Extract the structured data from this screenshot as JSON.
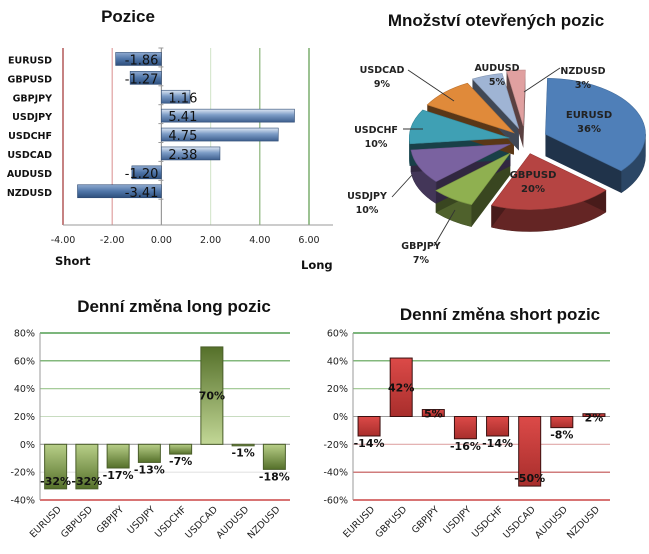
{
  "chart_data": [
    {
      "id": "pozice",
      "type": "bar",
      "orientation": "horizontal",
      "title": "Pozice",
      "categories": [
        "EURUSD",
        "GBPUSD",
        "GBPJPY",
        "USDJPY",
        "USDCHF",
        "USDCAD",
        "AUDUSD",
        "NZDUSD"
      ],
      "values": [
        -1.86,
        -1.27,
        1.16,
        5.41,
        4.75,
        2.38,
        -1.2,
        -3.41
      ],
      "value_labels": [
        "-1.86",
        "-1.27",
        "1.16",
        "5.41",
        "4.75",
        "2.38",
        "-1.20",
        "-3.41"
      ],
      "xlim": [
        -4,
        6
      ],
      "xticks": [
        -4,
        -2,
        0,
        2,
        4,
        6
      ],
      "xtick_labels": [
        "-4.00",
        "-2.00",
        "0.00",
        "2.00",
        "4.00",
        "6.00"
      ],
      "xlabel_left": "Short",
      "xlabel_right": "Long",
      "colors": {
        "bar": "#4f75a8",
        "bar_light": "#c9d8ec",
        "neg_grid": "#b22a2a",
        "pos_grid": "#4e9a4e"
      }
    },
    {
      "id": "mnozstvi",
      "type": "pie",
      "title": "Množství otevřených pozic",
      "slices": [
        {
          "label": "EURUSD",
          "value": 36,
          "text": "36%",
          "color": "#4f7fb8"
        },
        {
          "label": "GBPUSD",
          "value": 20,
          "text": "20%",
          "color": "#b54442"
        },
        {
          "label": "GBPJPY",
          "value": 7,
          "text": "7%",
          "color": "#8fb050"
        },
        {
          "label": "USDJPY",
          "value": 10,
          "text": "10%",
          "color": "#7a62a0"
        },
        {
          "label": "USDCHF",
          "value": 10,
          "text": "10%",
          "color": "#3fa0b4"
        },
        {
          "label": "USDCAD",
          "value": 9,
          "text": "9%",
          "color": "#e08a3a"
        },
        {
          "label": "AUDUSD",
          "value": 5,
          "text": "5%",
          "color": "#9fb4d4"
        },
        {
          "label": "NZDUSD",
          "value": 3,
          "text": "3%",
          "color": "#e0a0a0"
        }
      ]
    },
    {
      "id": "long",
      "type": "bar",
      "title": "Denní změna long pozic",
      "categories": [
        "EURUSD",
        "GBPUSD",
        "GBPJPY",
        "USDJPY",
        "USDCHF",
        "USDCAD",
        "AUDUSD",
        "NZDUSD"
      ],
      "values": [
        -32,
        -32,
        -17,
        -13,
        -7,
        70,
        -1,
        -18
      ],
      "value_labels": [
        "-32%",
        "-32%",
        "-17%",
        "-13%",
        "-7%",
        "70%",
        "-1%",
        "-18%"
      ],
      "ylim": [
        -40,
        80
      ],
      "yticks": [
        -40,
        -20,
        0,
        20,
        40,
        60,
        80
      ],
      "ytick_labels": [
        "-40%",
        "-20%",
        "0%",
        "20%",
        "40%",
        "60%",
        "80%"
      ],
      "colors": {
        "bar_dark": "#5a7a2a",
        "bar_light": "#b8cf88"
      }
    },
    {
      "id": "short",
      "type": "bar",
      "title": "Denní změna short pozic",
      "categories": [
        "EURUSD",
        "GBPUSD",
        "GBPJPY",
        "USDJPY",
        "USDCHF",
        "USDCAD",
        "AUDUSD",
        "NZDUSD"
      ],
      "values": [
        -14,
        42,
        5,
        -16,
        -14,
        -50,
        -8,
        2
      ],
      "value_labels": [
        "-14%",
        "42%",
        "5%",
        "-16%",
        "-14%",
        "-50%",
        "-8%",
        "2%"
      ],
      "ylim": [
        -60,
        60
      ],
      "yticks": [
        -60,
        -40,
        -20,
        0,
        20,
        40,
        60
      ],
      "ytick_labels": [
        "-60%",
        "-40%",
        "-20%",
        "0%",
        "20%",
        "40%",
        "60%"
      ],
      "colors": {
        "bar_dark": "#9e2626",
        "bar_light": "#d84a4a"
      }
    }
  ]
}
